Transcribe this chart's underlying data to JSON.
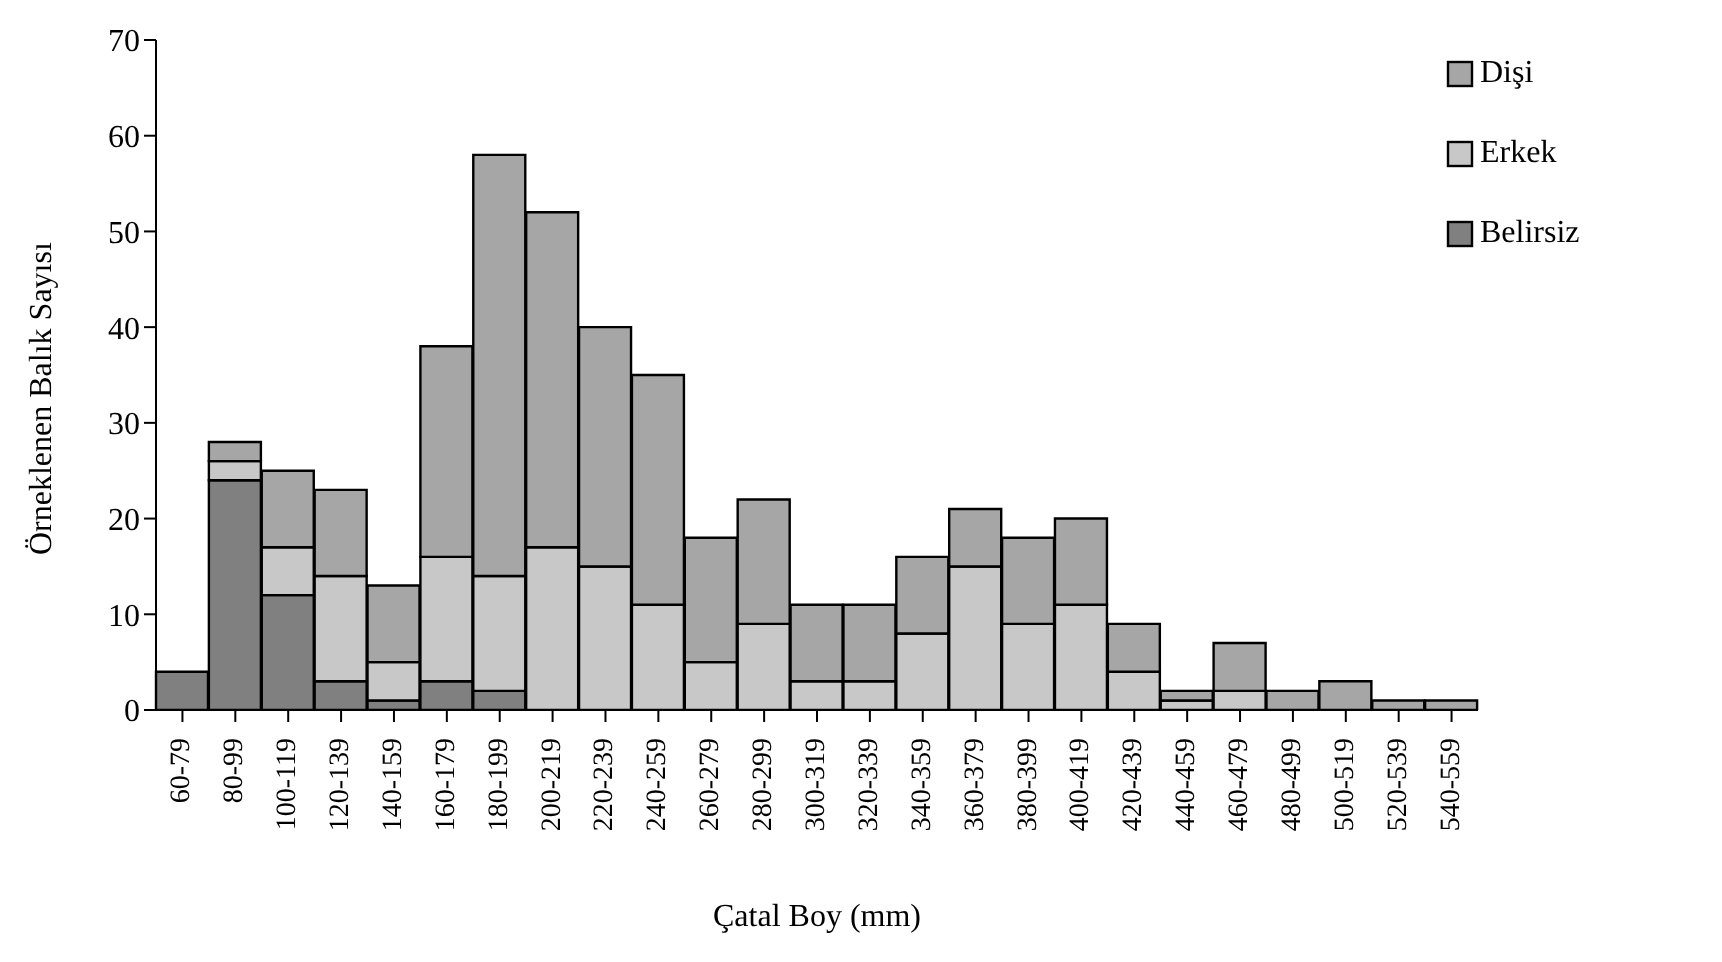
{
  "chart_data": {
    "type": "bar",
    "stacked": true,
    "xlabel": "Çatal Boy (mm)",
    "ylabel": "Örneklenen Balık Sayısı",
    "categories": [
      "60-79",
      "80-99",
      "100-119",
      "120-139",
      "140-159",
      "160-179",
      "180-199",
      "200-219",
      "220-239",
      "240-259",
      "260-279",
      "280-299",
      "300-319",
      "320-339",
      "340-359",
      "360-379",
      "380-399",
      "400-419",
      "420-439",
      "440-459",
      "460-479",
      "480-499",
      "500-519",
      "520-539",
      "540-559"
    ],
    "series": [
      {
        "name": "Belirsiz",
        "color": "#808080",
        "values": [
          4,
          24,
          12,
          3,
          1,
          3,
          2,
          0,
          0,
          0,
          0,
          0,
          0,
          0,
          0,
          0,
          0,
          0,
          0,
          0,
          0,
          0,
          0,
          0,
          0
        ]
      },
      {
        "name": "Erkek",
        "color": "#c8c8c8",
        "values": [
          0,
          2,
          5,
          11,
          4,
          13,
          12,
          17,
          15,
          11,
          5,
          9,
          3,
          3,
          8,
          15,
          9,
          11,
          4,
          1,
          2,
          0,
          0,
          0,
          0
        ]
      },
      {
        "name": "Dişi",
        "color": "#a6a6a6",
        "values": [
          0,
          2,
          8,
          9,
          8,
          22,
          44,
          35,
          25,
          24,
          13,
          13,
          8,
          8,
          8,
          6,
          9,
          9,
          5,
          1,
          5,
          2,
          3,
          1,
          1
        ]
      }
    ],
    "ylim": [
      0,
      70
    ],
    "yticks": [
      0,
      10,
      20,
      30,
      40,
      50,
      60,
      70
    ],
    "grid": false,
    "legend": "top right"
  }
}
